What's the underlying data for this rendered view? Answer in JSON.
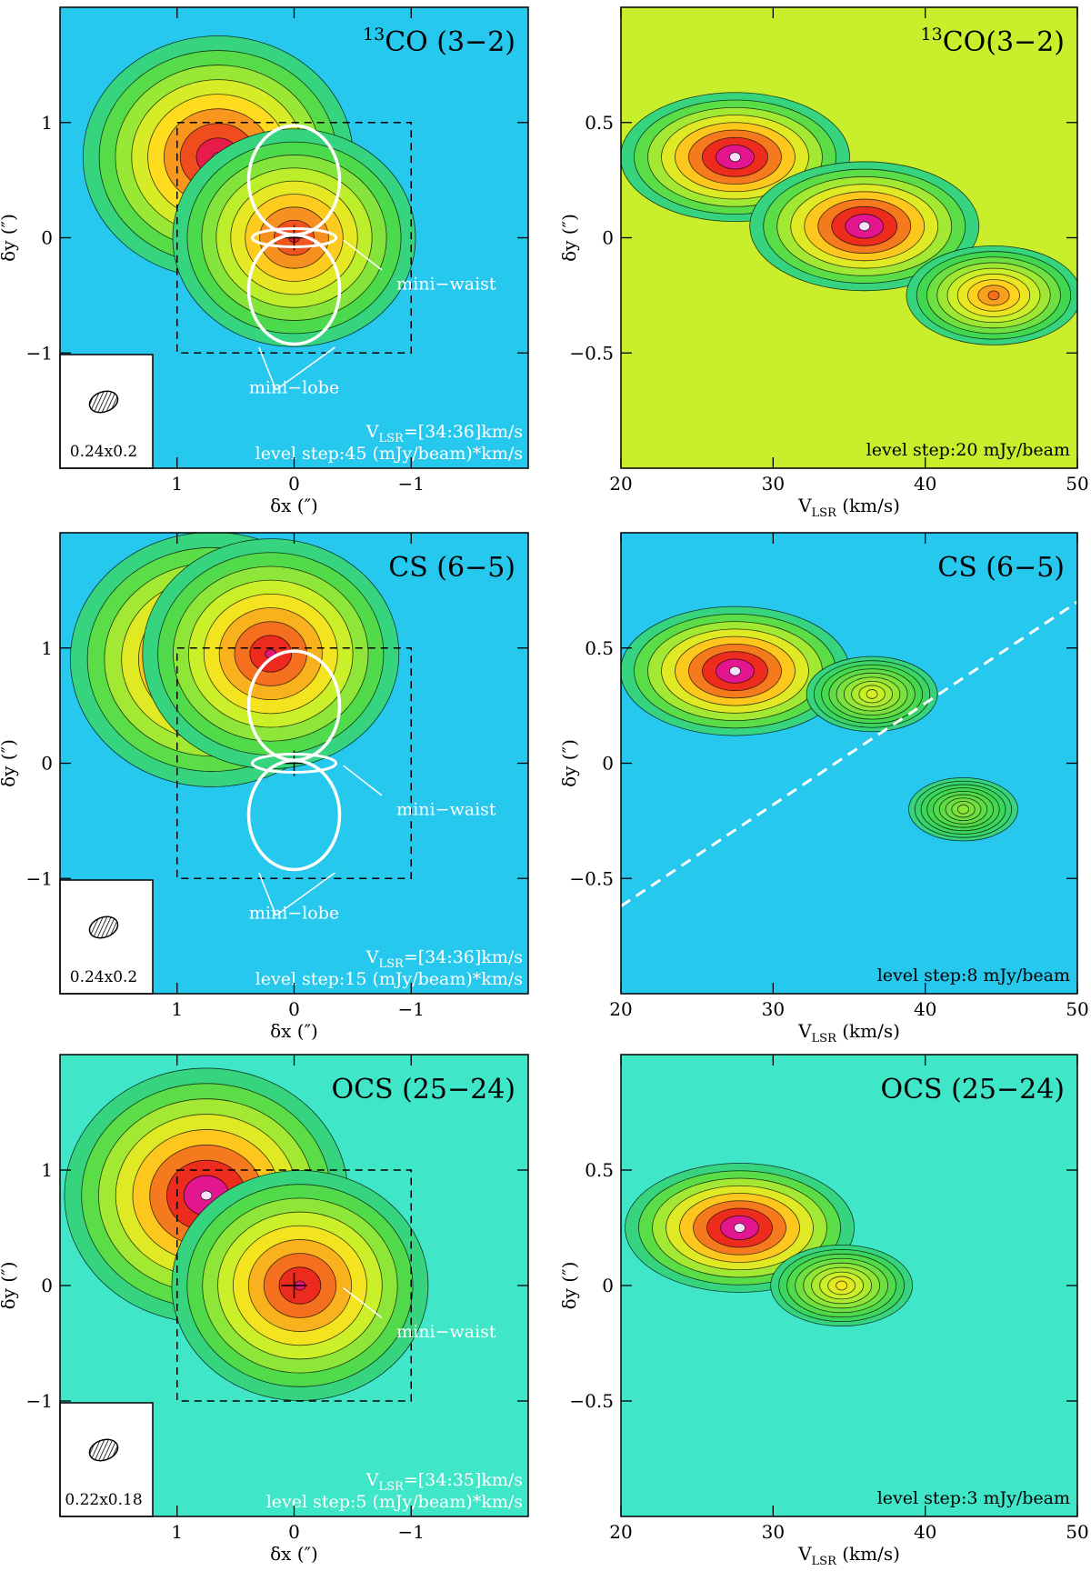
{
  "chart_data": [
    {
      "id": "map-13co",
      "type": "heatmap",
      "subtype": "integrated-intensity-map",
      "title": "13CO (3−2)",
      "title_sup": "13",
      "title_main": "CO (3−2)",
      "xlabel": "δx (″)",
      "ylabel": "δy (″)",
      "xlim": [
        2,
        -2
      ],
      "ylim": [
        -2,
        2
      ],
      "xticks": [
        1,
        0,
        -1
      ],
      "xtick_labels": [
        "1",
        "0",
        "−1"
      ],
      "yticks": [
        -1,
        0,
        1
      ],
      "ytick_labels": [
        "−1",
        "0",
        "1"
      ],
      "beam_label": "0.24x0.2",
      "vlsr_label": "V",
      "vlsr_sub": "LSR",
      "vlsr_range": "=[34:36]km/s",
      "level_step": "level step:45 (mJy/beam)*km/s",
      "annotations": [
        "mini−waist",
        "mini−lobe"
      ],
      "colormap": "rainbow",
      "peaks": [
        {
          "x": 0.65,
          "y": 0.7,
          "level": 0.95
        },
        {
          "x": 0.0,
          "y": 0.0,
          "level": 0.85
        }
      ]
    },
    {
      "id": "pv-13co",
      "type": "heatmap",
      "subtype": "position-velocity",
      "title": "13CO(3−2)",
      "title_sup": "13",
      "title_main": "CO(3−2)",
      "xlabel": "V",
      "xlabel_sub": "LSR",
      "xlabel_unit": " (km/s)",
      "ylabel": "δy (″)",
      "xlim": [
        20,
        50
      ],
      "ylim": [
        -1,
        1
      ],
      "xticks": [
        20,
        30,
        40,
        50
      ],
      "xtick_labels": [
        "20",
        "30",
        "40",
        "50"
      ],
      "yticks": [
        -0.5,
        0,
        0.5
      ],
      "ytick_labels": [
        "−0.5",
        "0",
        "0.5"
      ],
      "level_step": "level step:20 mJy/beam",
      "colormap": "rainbow-warm",
      "peaks": [
        {
          "x": 27.5,
          "y": 0.35,
          "level": 1.0
        },
        {
          "x": 36.0,
          "y": 0.05,
          "level": 1.0
        },
        {
          "x": 44.5,
          "y": -0.25,
          "level": 0.75
        }
      ]
    },
    {
      "id": "map-cs",
      "type": "heatmap",
      "subtype": "integrated-intensity-map",
      "title": "CS (6−5)",
      "title_main": "CS (6−5)",
      "xlabel": "δx (″)",
      "ylabel": "δy (″)",
      "xlim": [
        2,
        -2
      ],
      "ylim": [
        -2,
        2
      ],
      "xticks": [
        1,
        0,
        -1
      ],
      "xtick_labels": [
        "1",
        "0",
        "−1"
      ],
      "yticks": [
        -1,
        0,
        1
      ],
      "ytick_labels": [
        "−1",
        "0",
        "1"
      ],
      "beam_label": "0.24x0.2",
      "vlsr_label": "V",
      "vlsr_sub": "LSR",
      "vlsr_range": "=[34:36]km/s",
      "level_step": "level step:15 (mJy/beam)*km/s",
      "annotations": [
        "mini−waist",
        "mini−lobe"
      ],
      "colormap": "rainbow",
      "peaks": [
        {
          "x": 0.7,
          "y": 0.9,
          "level": 1.0
        },
        {
          "x": 0.2,
          "y": 0.95,
          "level": 0.9
        }
      ]
    },
    {
      "id": "pv-cs",
      "type": "heatmap",
      "subtype": "position-velocity",
      "title": "CS (6−5)",
      "title_main": "CS (6−5)",
      "xlabel": "V",
      "xlabel_sub": "LSR",
      "xlabel_unit": " (km/s)",
      "ylabel": "δy (″)",
      "xlim": [
        20,
        50
      ],
      "ylim": [
        -1,
        1
      ],
      "xticks": [
        20,
        30,
        40,
        50
      ],
      "xtick_labels": [
        "20",
        "30",
        "40",
        "50"
      ],
      "yticks": [
        -0.5,
        0,
        0.5
      ],
      "ytick_labels": [
        "−0.5",
        "0",
        "0.5"
      ],
      "level_step": "level step:8 mJy/beam",
      "dashed_line": {
        "x": [
          20,
          50
        ],
        "y": [
          -0.62,
          0.7
        ]
      },
      "colormap": "rainbow",
      "peaks": [
        {
          "x": 27.5,
          "y": 0.4,
          "level": 1.0
        },
        {
          "x": 36.5,
          "y": 0.3,
          "level": 0.55
        },
        {
          "x": 42.5,
          "y": -0.2,
          "level": 0.45
        }
      ]
    },
    {
      "id": "map-ocs",
      "type": "heatmap",
      "subtype": "integrated-intensity-map",
      "title": "OCS (25−24)",
      "title_main": "OCS (25−24)",
      "xlabel": "δx (″)",
      "ylabel": "δy (″)",
      "xlim": [
        2,
        -2
      ],
      "ylim": [
        -2,
        2
      ],
      "xticks": [
        1,
        0,
        -1
      ],
      "xtick_labels": [
        "1",
        "0",
        "−1"
      ],
      "yticks": [
        -1,
        0,
        1
      ],
      "ytick_labels": [
        "−1",
        "0",
        "1"
      ],
      "beam_label": "0.22x0.18",
      "vlsr_label": "V",
      "vlsr_sub": "LSR",
      "vlsr_range": "=[34:35]km/s",
      "level_step": "level step:5 (mJy/beam)*km/s",
      "annotations": [
        "mini−waist"
      ],
      "colormap": "rainbow-low",
      "peaks": [
        {
          "x": 0.75,
          "y": 0.78,
          "level": 1.0
        },
        {
          "x": -0.05,
          "y": 0.0,
          "level": 0.9
        }
      ]
    },
    {
      "id": "pv-ocs",
      "type": "heatmap",
      "subtype": "position-velocity",
      "title": "OCS (25−24)",
      "title_main": "OCS (25−24)",
      "xlabel": "V",
      "xlabel_sub": "LSR",
      "xlabel_unit": " (km/s)",
      "ylabel": "δy (″)",
      "xlim": [
        20,
        50
      ],
      "ylim": [
        -1,
        1
      ],
      "xticks": [
        20,
        30,
        40,
        50
      ],
      "xtick_labels": [
        "20",
        "30",
        "40",
        "50"
      ],
      "yticks": [
        -0.5,
        0,
        0.5
      ],
      "ytick_labels": [
        "−0.5",
        "0",
        "0.5"
      ],
      "level_step": "level step:3 mJy/beam",
      "colormap": "rainbow-low",
      "peaks": [
        {
          "x": 27.8,
          "y": 0.25,
          "level": 1.0
        },
        {
          "x": 34.5,
          "y": 0.0,
          "level": 0.6
        }
      ]
    }
  ]
}
